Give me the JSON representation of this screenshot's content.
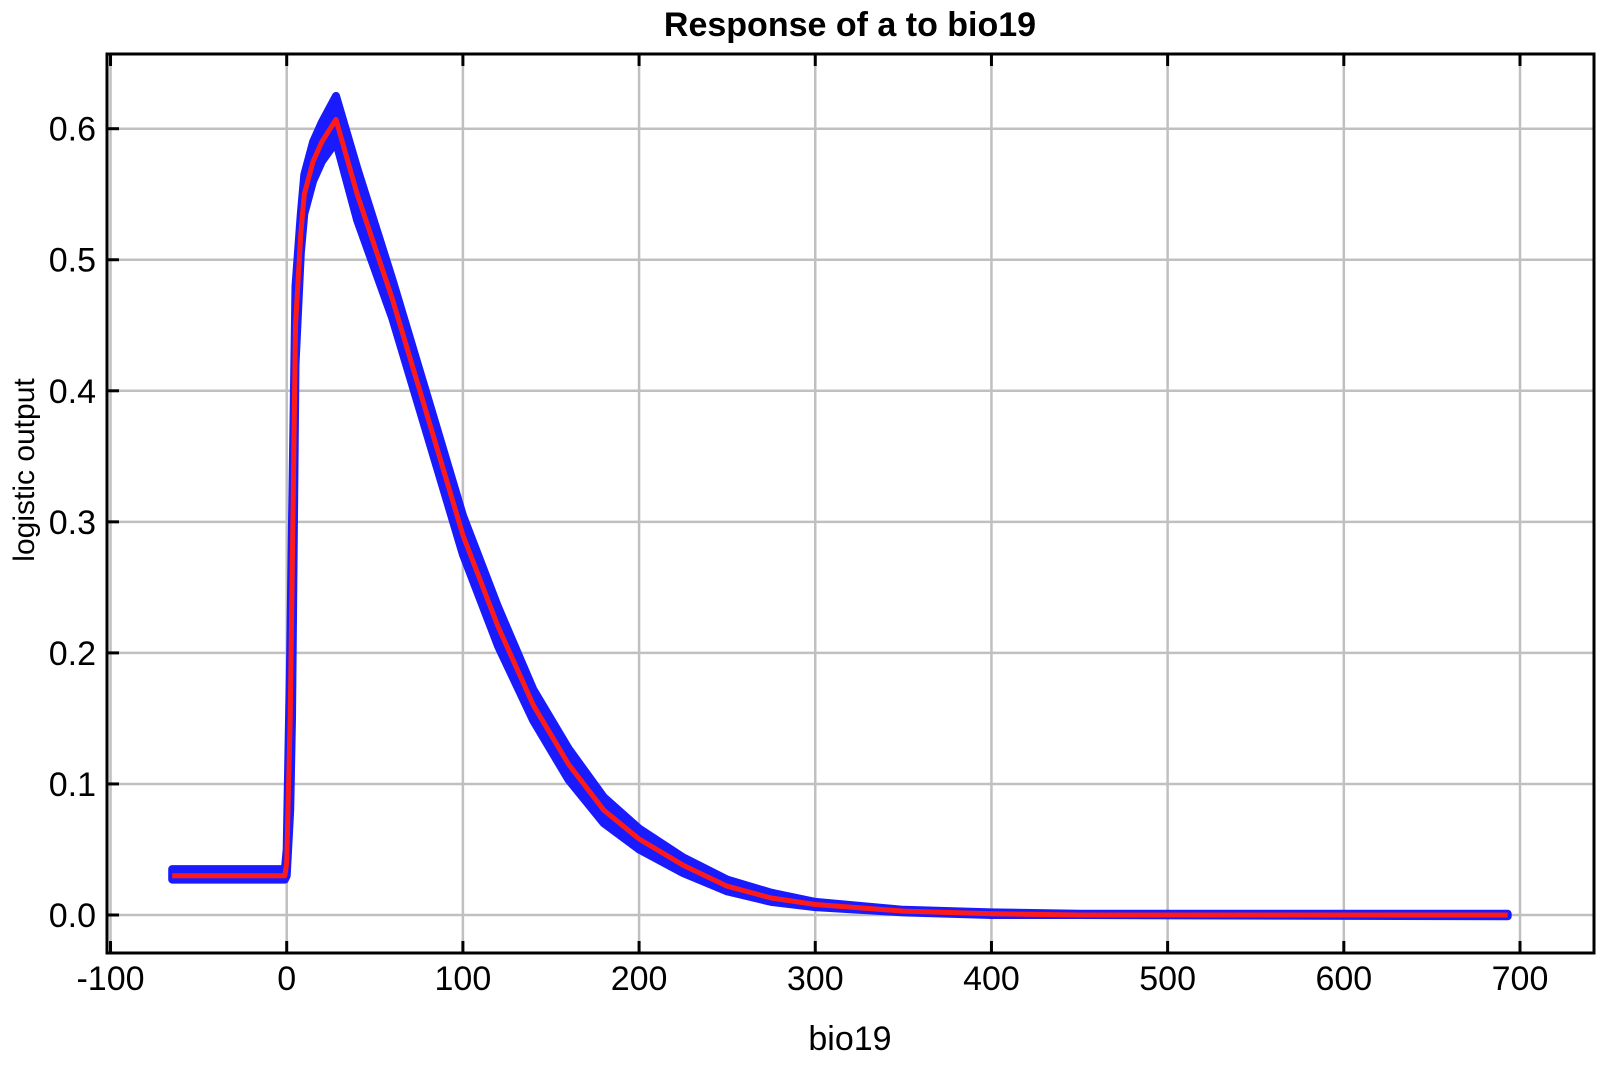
{
  "chart_data": {
    "type": "line",
    "title": "Response of a to bio19",
    "xlabel": "bio19",
    "ylabel": "logistic output",
    "xlim": [
      -102,
      742
    ],
    "ylim": [
      -0.029,
      0.657
    ],
    "xticks": [
      -100,
      0,
      100,
      200,
      300,
      400,
      500,
      600,
      700
    ],
    "xtick_labels": [
      "-100",
      "0",
      "100",
      "200",
      "300",
      "400",
      "500",
      "600",
      "700"
    ],
    "yticks": [
      0.0,
      0.1,
      0.2,
      0.3,
      0.4,
      0.5,
      0.6
    ],
    "ytick_labels": [
      "0.0",
      "0.1",
      "0.2",
      "0.3",
      "0.4",
      "0.5",
      "0.6"
    ],
    "grid": true,
    "legend": "none",
    "colors": {
      "mean": "#ff1a1a",
      "spread": "#1a1aff",
      "grid": "#c0c0c0"
    },
    "series": [
      {
        "role": "spread",
        "x": [
          -65,
          -1,
          0,
          2,
          3,
          5,
          8,
          10,
          15,
          20,
          28,
          40,
          60,
          80,
          100,
          120,
          140,
          160,
          180,
          200,
          225,
          250,
          275,
          300,
          350,
          400,
          450,
          693
        ],
        "upper": [
          0.035,
          0.035,
          0.05,
          0.2,
          0.3,
          0.48,
          0.535,
          0.565,
          0.59,
          0.605,
          0.625,
          0.57,
          0.485,
          0.395,
          0.305,
          0.235,
          0.172,
          0.127,
          0.09,
          0.066,
          0.044,
          0.027,
          0.017,
          0.01,
          0.004,
          0.002,
          0.001,
          0.001
        ],
        "lower": [
          0.027,
          0.027,
          0.03,
          0.08,
          0.15,
          0.42,
          0.505,
          0.535,
          0.56,
          0.575,
          0.59,
          0.53,
          0.455,
          0.365,
          0.275,
          0.205,
          0.148,
          0.103,
          0.07,
          0.05,
          0.032,
          0.018,
          0.01,
          0.006,
          0.002,
          0.0,
          0.0,
          -0.001
        ]
      },
      {
        "role": "mean",
        "x": [
          -65,
          -1,
          0,
          2,
          3,
          5,
          8,
          10,
          15,
          20,
          28,
          40,
          60,
          80,
          100,
          120,
          140,
          160,
          180,
          200,
          225,
          250,
          275,
          300,
          350,
          400,
          450,
          693
        ],
        "values": [
          0.03,
          0.03,
          0.04,
          0.15,
          0.25,
          0.45,
          0.52,
          0.55,
          0.575,
          0.59,
          0.607,
          0.55,
          0.47,
          0.38,
          0.29,
          0.22,
          0.16,
          0.115,
          0.08,
          0.058,
          0.038,
          0.022,
          0.013,
          0.008,
          0.003,
          0.001,
          0.0,
          0.0
        ]
      }
    ]
  }
}
